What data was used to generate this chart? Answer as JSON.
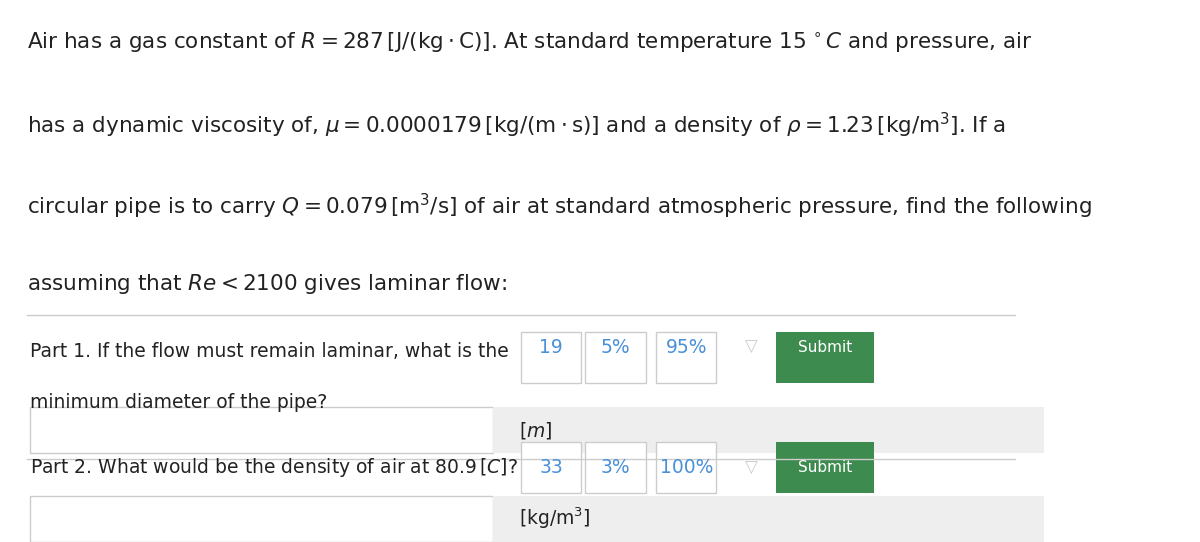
{
  "bg_color": "#ffffff",
  "text_color": "#222222",
  "green_color": "#3a7d44",
  "blue_color": "#4a90d9",
  "gray_bg": "#f0f0f0",
  "border_color": "#cccccc",
  "submit_color": "#3d8b4e",
  "header_lines": [
    "Air has a gas constant of $R = 287\\,[\\mathrm{J/(kg \\cdot C)}]$. At standard temperature $15\\,^\\circ C$ and pressure, air",
    "has a dynamic viscosity of, $\\mu = 0.0000179\\,[\\mathrm{kg/(m \\cdot s)}]$ and a density of $\\rho = 1.23\\,[\\mathrm{kg/m^3}]$. If a",
    "circular pipe is to carry $Q = 0.079\\,[\\mathrm{m^3/s}]$ of air at standard atmospheric pressure, find the following",
    "assuming that $Re < 2100$ gives laminar flow:"
  ],
  "part1_text_line1": "Part 1. If the flow must remain laminar, what is the",
  "part1_text_line2": "minimum diameter of the pipe?",
  "part1_num": "19",
  "part1_pct1": "5%",
  "part1_pct2": "95%",
  "part1_unit": "$[m]$",
  "part2_text": "Part 2. What would be the density of air at $80.9\\,[C]$?",
  "part2_num": "33",
  "part2_pct1": "3%",
  "part2_pct2": "100%",
  "part2_unit": "$[\\mathrm{kg/m^3}]$",
  "font_size_header": 15.5,
  "font_size_part": 13.5,
  "font_size_stats": 13.5
}
